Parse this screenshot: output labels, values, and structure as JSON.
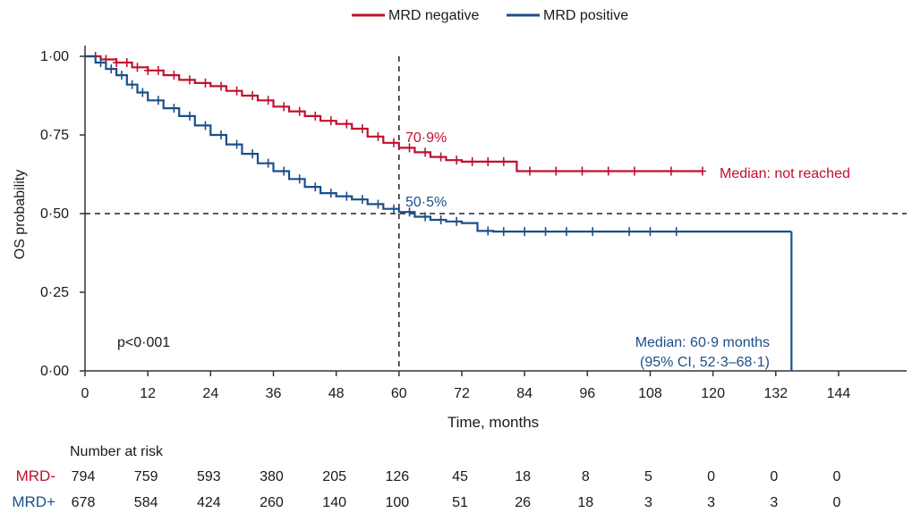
{
  "chart_data": {
    "type": "line",
    "subtype": "kaplan-meier",
    "xlabel": "Time, months",
    "ylabel": "OS probability",
    "xlim": [
      0,
      156
    ],
    "ylim": [
      0,
      1
    ],
    "x_ticks": [
      0,
      12,
      24,
      36,
      48,
      60,
      72,
      84,
      96,
      108,
      120,
      132,
      144
    ],
    "y_ticks": [
      "0·00",
      "0·25",
      "0·50",
      "0·75",
      "1·00"
    ],
    "grid": false,
    "legend_position": "top-center",
    "reference_lines": {
      "vertical_x": 60,
      "horizontal_y": 0.5
    },
    "p_value": "p<0·001",
    "series": [
      {
        "name": "MRD negative",
        "color": "#c0102e",
        "annotation_60": "70·9%",
        "median_label": "Median: not reached",
        "x": [
          0,
          3,
          6,
          9,
          12,
          15,
          18,
          21,
          24,
          27,
          30,
          33,
          36,
          39,
          42,
          45,
          48,
          51,
          54,
          57,
          60,
          63,
          66,
          69,
          72,
          78,
          82,
          82.5,
          90,
          100,
          110,
          118
        ],
        "y": [
          1.0,
          0.99,
          0.98,
          0.965,
          0.955,
          0.94,
          0.925,
          0.915,
          0.905,
          0.89,
          0.875,
          0.86,
          0.84,
          0.825,
          0.81,
          0.795,
          0.785,
          0.77,
          0.745,
          0.725,
          0.709,
          0.695,
          0.68,
          0.67,
          0.665,
          0.665,
          0.665,
          0.635,
          0.635,
          0.635,
          0.635,
          0.635
        ],
        "censor_x": [
          2,
          4,
          6,
          8,
          10,
          12,
          14,
          17,
          20,
          23,
          26,
          29,
          32,
          35,
          38,
          41,
          44,
          47,
          50,
          53,
          56,
          59,
          62,
          65,
          68,
          71,
          74,
          77,
          80,
          85,
          90,
          95,
          100,
          105,
          112,
          118
        ]
      },
      {
        "name": "MRD positive",
        "color": "#1b4f8a",
        "annotation_60": "50·5%",
        "median_label_line1": "Median: 60·9 months",
        "median_label_line2": "(95% CI, 52·3–68·1)",
        "x": [
          0,
          2,
          4,
          6,
          8,
          10,
          12,
          15,
          18,
          21,
          24,
          27,
          30,
          33,
          36,
          39,
          42,
          45,
          48,
          51,
          54,
          57,
          60,
          63,
          66,
          69,
          72,
          75,
          78,
          90,
          100,
          110,
          120,
          130,
          135
        ],
        "y": [
          1.0,
          0.98,
          0.96,
          0.94,
          0.91,
          0.885,
          0.86,
          0.835,
          0.81,
          0.78,
          0.75,
          0.72,
          0.69,
          0.66,
          0.635,
          0.61,
          0.585,
          0.565,
          0.555,
          0.545,
          0.53,
          0.515,
          0.505,
          0.49,
          0.48,
          0.475,
          0.47,
          0.445,
          0.443,
          0.443,
          0.443,
          0.443,
          0.443,
          0.443,
          0.443
        ],
        "end_x": 135,
        "censor_x": [
          3,
          5,
          7,
          9,
          11,
          14,
          17,
          20,
          23,
          26,
          29,
          32,
          35,
          38,
          41,
          44,
          47,
          50,
          53,
          56,
          59,
          62,
          65,
          68,
          71,
          77,
          80,
          84,
          88,
          92,
          97,
          104,
          108,
          113
        ]
      }
    ],
    "risk_table": {
      "title": "Number at risk",
      "time_points": [
        0,
        12,
        24,
        36,
        48,
        60,
        72,
        84,
        96,
        108,
        120,
        132,
        144
      ],
      "rows": [
        {
          "label": "MRD-",
          "color": "#c0102e",
          "values": [
            "794",
            "759",
            "593",
            "380",
            "205",
            "126",
            "45",
            "18",
            "8",
            "5",
            "0",
            "0",
            "0"
          ]
        },
        {
          "label": "MRD+",
          "color": "#1b4f8a",
          "values": [
            "678",
            "584",
            "424",
            "260",
            "140",
            "100",
            "51",
            "26",
            "18",
            "3",
            "3",
            "3",
            "0"
          ]
        }
      ]
    }
  }
}
